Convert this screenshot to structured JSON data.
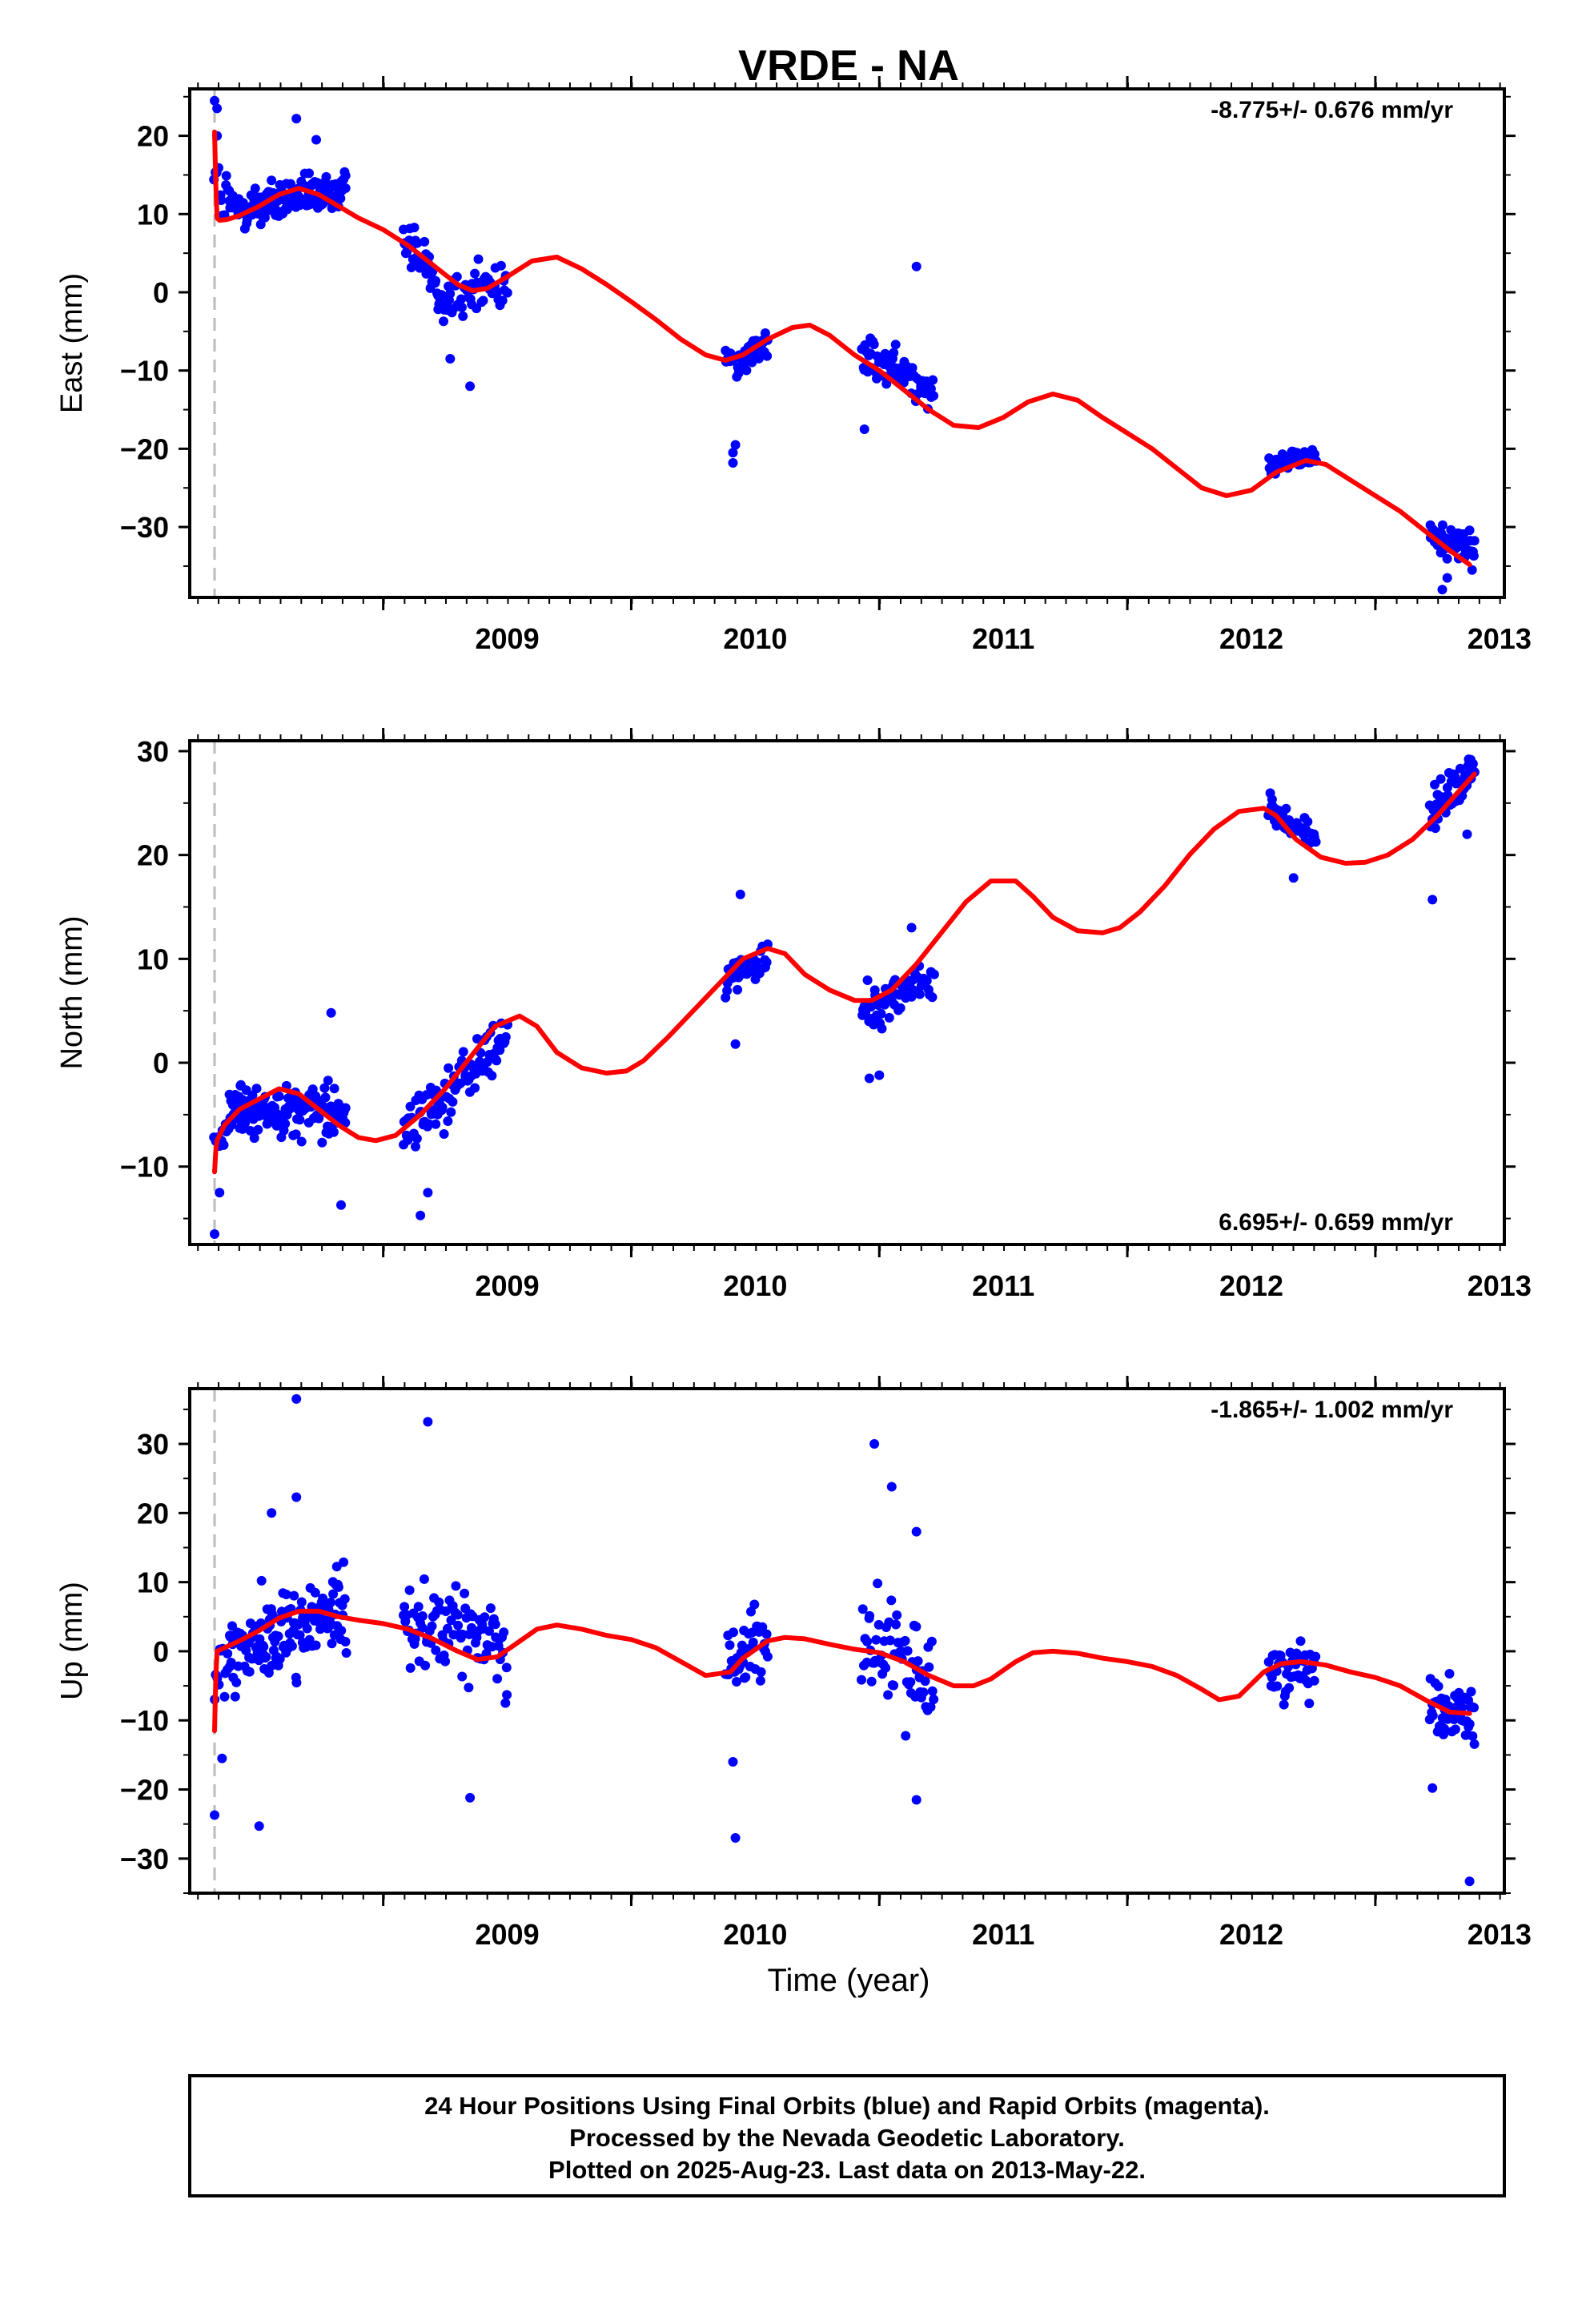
{
  "title": "VRDE - NA",
  "x_axis": {
    "label": "Time (year)",
    "range": [
      2008.22,
      2013.52
    ],
    "major_ticks": [
      2009,
      2010,
      2011,
      2012,
      2013
    ],
    "tick_labels": [
      "2009",
      "2010",
      "2011",
      "2012",
      "2013"
    ],
    "minor_tick_step": 0.08333
  },
  "footer": {
    "line1": "24 Hour Positions Using Final Orbits (blue) and Rapid Orbits (magenta).",
    "line2": "Processed by the Nevada Geodetic Laboratory.",
    "line3": "Plotted on 2025-Aug-23. Last data on 2013-May-22."
  },
  "colors": {
    "points": "#0000ff",
    "model": "#ff0000",
    "event_line": "#bbbbbb",
    "frame": "#000000"
  },
  "chart_data": [
    {
      "type": "scatter",
      "component": "east",
      "ylabel": "East (mm)",
      "rate_text": "-8.775+/- 0.676 mm/yr",
      "rate_position": "top-right",
      "ylim": [
        -39,
        26
      ],
      "yticks": [
        20,
        10,
        0,
        -10,
        -20,
        -30
      ],
      "ytick_labels": [
        "20",
        "10",
        "0",
        "−10",
        "−20",
        "−30"
      ],
      "event_line_x": 2008.32,
      "point_clusters": [
        {
          "start": 2008.32,
          "end": 2008.38,
          "trend": [
            14,
            11
          ],
          "spread": 4,
          "n": 12
        },
        {
          "start": 2008.38,
          "end": 2008.85,
          "trend": [
            10.5,
            13
          ],
          "spread": 2.5,
          "n": 150
        },
        {
          "start": 2009.08,
          "end": 2009.22,
          "trend": [
            7.5,
            2
          ],
          "spread": 2.5,
          "n": 35
        },
        {
          "start": 2009.22,
          "end": 2009.5,
          "trend": [
            -1,
            1.5
          ],
          "spread": 3,
          "n": 55
        },
        {
          "start": 2010.38,
          "end": 2010.55,
          "trend": [
            -9,
            -7
          ],
          "spread": 2,
          "n": 40
        },
        {
          "start": 2010.93,
          "end": 2011.22,
          "trend": [
            -8,
            -12
          ],
          "spread": 2.2,
          "n": 65
        },
        {
          "start": 2012.57,
          "end": 2012.76,
          "trend": [
            -22,
            -21
          ],
          "spread": 1.3,
          "n": 45
        },
        {
          "start": 2013.22,
          "end": 2013.4,
          "trend": [
            -31,
            -33
          ],
          "spread": 1.8,
          "n": 55
        }
      ],
      "outliers": [
        [
          2008.32,
          24.5
        ],
        [
          2008.33,
          23.5
        ],
        [
          2008.33,
          20
        ],
        [
          2008.65,
          22.2
        ],
        [
          2008.73,
          19.5
        ],
        [
          2009.35,
          -12
        ],
        [
          2009.27,
          -8.5
        ],
        [
          2010.41,
          -21.8
        ],
        [
          2010.42,
          -19.5
        ],
        [
          2010.41,
          -20.5
        ],
        [
          2011.15,
          3.3
        ],
        [
          2010.94,
          -17.5
        ],
        [
          2013.27,
          -38
        ],
        [
          2013.29,
          -36.5
        ],
        [
          2013.39,
          -35.5
        ]
      ],
      "model_x": [
        2008.32,
        2008.325,
        2008.33,
        2008.34,
        2008.37,
        2008.42,
        2008.5,
        2008.58,
        2008.66,
        2008.74,
        2008.82,
        2008.9,
        2009.0,
        2009.1,
        2009.2,
        2009.3,
        2009.36,
        2009.42,
        2009.5,
        2009.6,
        2009.7,
        2009.8,
        2009.9,
        2010.0,
        2010.1,
        2010.2,
        2010.3,
        2010.38,
        2010.45,
        2010.55,
        2010.65,
        2010.72,
        2010.8,
        2010.9,
        2011.0,
        2011.1,
        2011.2,
        2011.3,
        2011.4,
        2011.5,
        2011.6,
        2011.7,
        2011.8,
        2011.9,
        2012.0,
        2012.1,
        2012.2,
        2012.3,
        2012.4,
        2012.5,
        2012.6,
        2012.72,
        2012.8,
        2012.9,
        2013.0,
        2013.1,
        2013.2,
        2013.3,
        2013.38
      ],
      "model_y": [
        20.5,
        14,
        9.5,
        9.2,
        9.3,
        9.8,
        11,
        12.5,
        13.3,
        12.5,
        11,
        9.5,
        8,
        6,
        3.5,
        1,
        0.2,
        0.5,
        2,
        4,
        4.5,
        3,
        1,
        -1.2,
        -3.5,
        -6,
        -8,
        -8.7,
        -8,
        -6,
        -4.5,
        -4.2,
        -5.5,
        -8,
        -10,
        -12.5,
        -15,
        -17,
        -17.3,
        -16,
        -14,
        -13,
        -13.8,
        -16,
        -18,
        -20,
        -22.5,
        -25,
        -26,
        -25.3,
        -23,
        -21.5,
        -22,
        -24,
        -26,
        -28,
        -30.5,
        -33,
        -34.8
      ]
    },
    {
      "type": "scatter",
      "component": "north",
      "ylabel": "North (mm)",
      "rate_text": "6.695+/- 0.659 mm/yr",
      "rate_position": "bottom-right",
      "ylim": [
        -17.5,
        31
      ],
      "yticks": [
        30,
        20,
        10,
        0,
        -10
      ],
      "ytick_labels": [
        "30",
        "20",
        "10",
        "0",
        "−10"
      ],
      "event_line_x": 2008.32,
      "point_clusters": [
        {
          "start": 2008.32,
          "end": 2008.38,
          "trend": [
            -8,
            -6
          ],
          "spread": 1.5,
          "n": 12
        },
        {
          "start": 2008.38,
          "end": 2008.85,
          "trend": [
            -4.5,
            -4.5
          ],
          "spread": 2.2,
          "n": 150
        },
        {
          "start": 2009.08,
          "end": 2009.5,
          "trend": [
            -7,
            2.5
          ],
          "spread": 2.5,
          "n": 95
        },
        {
          "start": 2010.38,
          "end": 2010.55,
          "trend": [
            8,
            10
          ],
          "spread": 1.5,
          "n": 40
        },
        {
          "start": 2010.93,
          "end": 2011.22,
          "trend": [
            5,
            8
          ],
          "spread": 1.8,
          "n": 65
        },
        {
          "start": 2012.57,
          "end": 2012.76,
          "trend": [
            24.5,
            21.5
          ],
          "spread": 1.2,
          "n": 45
        },
        {
          "start": 2013.22,
          "end": 2013.4,
          "trend": [
            24,
            28
          ],
          "spread": 1.8,
          "n": 55
        }
      ],
      "outliers": [
        [
          2008.32,
          -16.5
        ],
        [
          2008.34,
          -12.5
        ],
        [
          2008.79,
          4.8
        ],
        [
          2008.83,
          -13.7
        ],
        [
          2009.15,
          -14.7
        ],
        [
          2009.18,
          -12.5
        ],
        [
          2010.44,
          16.2
        ],
        [
          2010.42,
          1.8
        ],
        [
          2010.96,
          -1.5
        ],
        [
          2011.0,
          -1.2
        ],
        [
          2011.13,
          13
        ],
        [
          2012.67,
          17.8
        ],
        [
          2013.23,
          15.7
        ],
        [
          2013.37,
          22
        ]
      ],
      "model_x": [
        2008.32,
        2008.325,
        2008.33,
        2008.36,
        2008.42,
        2008.5,
        2008.58,
        2008.66,
        2008.74,
        2008.82,
        2008.9,
        2008.97,
        2009.05,
        2009.15,
        2009.25,
        2009.35,
        2009.45,
        2009.55,
        2009.62,
        2009.7,
        2009.8,
        2009.9,
        2009.98,
        2010.05,
        2010.15,
        2010.25,
        2010.35,
        2010.45,
        2010.55,
        2010.62,
        2010.7,
        2010.8,
        2010.9,
        2010.97,
        2011.05,
        2011.15,
        2011.25,
        2011.35,
        2011.45,
        2011.55,
        2011.62,
        2011.7,
        2011.8,
        2011.9,
        2011.97,
        2012.05,
        2012.15,
        2012.25,
        2012.35,
        2012.45,
        2012.55,
        2012.6,
        2012.68,
        2012.78,
        2012.88,
        2012.96,
        2013.05,
        2013.15,
        2013.25,
        2013.35,
        2013.4
      ],
      "model_y": [
        -10.5,
        -8.5,
        -7.5,
        -6,
        -4.5,
        -3.5,
        -2.5,
        -3,
        -4.5,
        -6,
        -7.2,
        -7.5,
        -7,
        -5,
        -2.5,
        0.5,
        3.5,
        4.5,
        3.5,
        1,
        -0.5,
        -1,
        -0.8,
        0.2,
        2.5,
        5,
        7.5,
        10,
        11,
        10.5,
        8.5,
        7,
        6,
        6,
        7,
        9.5,
        12.5,
        15.5,
        17.5,
        17.5,
        16,
        14,
        12.7,
        12.5,
        13,
        14.5,
        17,
        20,
        22.5,
        24.2,
        24.5,
        23.8,
        21.5,
        19.8,
        19.2,
        19.3,
        20,
        21.5,
        23.8,
        26.5,
        27.8
      ]
    },
    {
      "type": "scatter",
      "component": "up",
      "ylabel": "Up (mm)",
      "rate_text": "-1.865+/- 1.002 mm/yr",
      "rate_position": "top-right",
      "ylim": [
        -35,
        38
      ],
      "yticks": [
        30,
        20,
        10,
        0,
        -10,
        -20,
        -30
      ],
      "ytick_labels": [
        "30",
        "20",
        "10",
        "0",
        "−10",
        "−20",
        "−30"
      ],
      "event_line_x": 2008.32,
      "point_clusters": [
        {
          "start": 2008.32,
          "end": 2008.38,
          "trend": [
            -5,
            0
          ],
          "spread": 5,
          "n": 12
        },
        {
          "start": 2008.38,
          "end": 2008.85,
          "trend": [
            0,
            6
          ],
          "spread": 5.5,
          "n": 150
        },
        {
          "start": 2009.08,
          "end": 2009.5,
          "trend": [
            5,
            1
          ],
          "spread": 5.5,
          "n": 95
        },
        {
          "start": 2010.38,
          "end": 2010.55,
          "trend": [
            -2,
            2
          ],
          "spread": 5,
          "n": 40
        },
        {
          "start": 2010.93,
          "end": 2011.22,
          "trend": [
            1,
            -4
          ],
          "spread": 6.5,
          "n": 65
        },
        {
          "start": 2012.57,
          "end": 2012.76,
          "trend": [
            -3,
            -2
          ],
          "spread": 3.5,
          "n": 45
        },
        {
          "start": 2013.22,
          "end": 2013.4,
          "trend": [
            -7,
            -10
          ],
          "spread": 4,
          "n": 55
        }
      ],
      "outliers": [
        [
          2008.32,
          -23.7
        ],
        [
          2008.35,
          -15.5
        ],
        [
          2008.5,
          -25.3
        ],
        [
          2008.65,
          36.5
        ],
        [
          2008.65,
          22.3
        ],
        [
          2008.55,
          20
        ],
        [
          2009.18,
          33.2
        ],
        [
          2009.35,
          -21.2
        ],
        [
          2010.42,
          -27
        ],
        [
          2010.41,
          -16
        ],
        [
          2010.98,
          30
        ],
        [
          2011.05,
          23.8
        ],
        [
          2011.15,
          17.3
        ],
        [
          2011.15,
          -21.5
        ],
        [
          2013.38,
          -33.3
        ],
        [
          2013.23,
          -19.8
        ]
      ],
      "model_x": [
        2008.32,
        2008.325,
        2008.33,
        2008.36,
        2008.42,
        2008.5,
        2008.58,
        2008.66,
        2008.74,
        2008.82,
        2008.9,
        2009.0,
        2009.1,
        2009.2,
        2009.3,
        2009.38,
        2009.46,
        2009.54,
        2009.62,
        2009.7,
        2009.8,
        2009.9,
        2010.0,
        2010.1,
        2010.2,
        2010.3,
        2010.4,
        2010.45,
        2010.55,
        2010.62,
        2010.7,
        2010.8,
        2010.9,
        2011.0,
        2011.1,
        2011.2,
        2011.3,
        2011.38,
        2011.45,
        2011.55,
        2011.62,
        2011.7,
        2011.8,
        2011.9,
        2012.0,
        2012.1,
        2012.2,
        2012.3,
        2012.37,
        2012.45,
        2012.55,
        2012.62,
        2012.7,
        2012.8,
        2012.9,
        2013.0,
        2013.1,
        2013.2,
        2013.3,
        2013.38
      ],
      "model_y": [
        -11.5,
        -4,
        0,
        0.5,
        1.5,
        3,
        4.8,
        5.8,
        5.8,
        5,
        4.5,
        4,
        3.2,
        1.8,
        0,
        -1.2,
        -0.8,
        1.2,
        3.2,
        3.8,
        3.2,
        2.3,
        1.7,
        0.5,
        -1.5,
        -3.5,
        -3,
        -1,
        1.5,
        2,
        1.8,
        1,
        0.3,
        -0.2,
        -1.5,
        -3.5,
        -5,
        -5,
        -4,
        -1.5,
        -0.2,
        0,
        -0.3,
        -1,
        -1.5,
        -2.2,
        -3.5,
        -5.5,
        -7,
        -6.5,
        -3,
        -1.8,
        -1.5,
        -2,
        -3,
        -3.8,
        -5,
        -7,
        -8.8,
        -9
      ]
    }
  ]
}
